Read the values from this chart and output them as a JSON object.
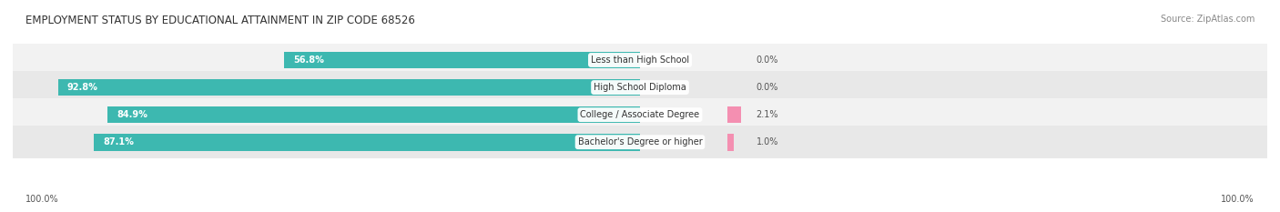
{
  "title": "EMPLOYMENT STATUS BY EDUCATIONAL ATTAINMENT IN ZIP CODE 68526",
  "source": "Source: ZipAtlas.com",
  "categories": [
    "Less than High School",
    "High School Diploma",
    "College / Associate Degree",
    "Bachelor's Degree or higher"
  ],
  "in_labor_force": [
    56.8,
    92.8,
    84.9,
    87.1
  ],
  "unemployed": [
    0.0,
    0.0,
    2.1,
    1.0
  ],
  "labor_force_color": "#3db8b0",
  "unemployed_color": "#f48fb1",
  "row_bg_light": "#f2f2f2",
  "row_bg_dark": "#e8e8e8",
  "title_fontsize": 8.5,
  "source_fontsize": 7,
  "value_fontsize": 7,
  "category_fontsize": 7,
  "legend_fontsize": 7.5,
  "bar_height": 0.62,
  "x_max": 100.0,
  "background_color": "#ffffff",
  "axis_tick_label": "100.0%"
}
